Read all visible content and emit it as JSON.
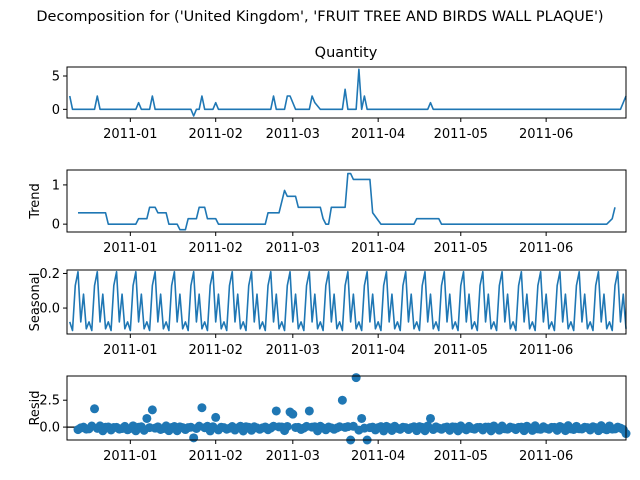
{
  "figure": {
    "suptitle": "Decomposition for ('United Kingdom', 'FRUIT TREE AND BIRDS WALL PLAQUE')"
  },
  "colors": {
    "series": "#1f77b4",
    "axis": "#000000",
    "background": "#ffffff"
  },
  "chart_data": [
    {
      "type": "line",
      "title": "Quantity",
      "ylabel": "",
      "x_ticks": [
        "2011-01",
        "2011-02",
        "2011-03",
        "2011-04",
        "2011-05",
        "2011-06"
      ],
      "y_ticks": [
        "0",
        "5"
      ],
      "ylim": [
        -1.3,
        6.35
      ],
      "points": [
        [
          "2010-12-10",
          2
        ],
        [
          "2010-12-11",
          0
        ],
        [
          "2010-12-19",
          0
        ],
        [
          "2010-12-20",
          2
        ],
        [
          "2010-12-21",
          0
        ],
        [
          "2011-01-03",
          0
        ],
        [
          "2011-01-04",
          1
        ],
        [
          "2011-01-05",
          0
        ],
        [
          "2011-01-08",
          0
        ],
        [
          "2011-01-09",
          2
        ],
        [
          "2011-01-10",
          0
        ],
        [
          "2011-01-23",
          0
        ],
        [
          "2011-01-24",
          -1
        ],
        [
          "2011-01-25",
          0
        ],
        [
          "2011-01-26",
          0
        ],
        [
          "2011-01-27",
          2
        ],
        [
          "2011-01-28",
          0
        ],
        [
          "2011-01-31",
          0
        ],
        [
          "2011-02-01",
          1
        ],
        [
          "2011-02-02",
          0
        ],
        [
          "2011-02-21",
          0
        ],
        [
          "2011-02-22",
          2
        ],
        [
          "2011-02-23",
          0
        ],
        [
          "2011-02-26",
          0
        ],
        [
          "2011-02-27",
          2
        ],
        [
          "2011-02-28",
          2
        ],
        [
          "2011-03-02",
          0
        ],
        [
          "2011-03-07",
          0
        ],
        [
          "2011-03-08",
          2
        ],
        [
          "2011-03-09",
          1
        ],
        [
          "2011-03-11",
          0
        ],
        [
          "2011-03-19",
          0
        ],
        [
          "2011-03-20",
          3
        ],
        [
          "2011-03-21",
          0
        ],
        [
          "2011-03-24",
          0
        ],
        [
          "2011-03-25",
          6
        ],
        [
          "2011-03-26",
          0
        ],
        [
          "2011-03-27",
          2
        ],
        [
          "2011-03-28",
          0
        ],
        [
          "2011-04-19",
          0
        ],
        [
          "2011-04-20",
          1
        ],
        [
          "2011-04-21",
          0
        ],
        [
          "2011-06-28",
          0
        ],
        [
          "2011-06-30",
          2
        ]
      ]
    },
    {
      "type": "line",
      "title": "",
      "ylabel": "Trend",
      "x_ticks": [
        "2011-01",
        "2011-02",
        "2011-03",
        "2011-04",
        "2011-05",
        "2011-06"
      ],
      "y_ticks": [
        "0",
        "1"
      ],
      "ylim": [
        -0.2,
        1.38
      ],
      "points": [
        [
          "2010-12-13",
          0.29
        ],
        [
          "2010-12-23",
          0.29
        ],
        [
          "2010-12-24",
          0.0
        ],
        [
          "2011-01-03",
          0.0
        ],
        [
          "2011-01-04",
          0.14
        ],
        [
          "2011-01-07",
          0.14
        ],
        [
          "2011-01-08",
          0.43
        ],
        [
          "2011-01-10",
          0.43
        ],
        [
          "2011-01-11",
          0.29
        ],
        [
          "2011-01-14",
          0.29
        ],
        [
          "2011-01-15",
          0.0
        ],
        [
          "2011-01-18",
          0.0
        ],
        [
          "2011-01-19",
          -0.14
        ],
        [
          "2011-01-21",
          -0.14
        ],
        [
          "2011-01-22",
          0.14
        ],
        [
          "2011-01-25",
          0.14
        ],
        [
          "2011-01-26",
          0.43
        ],
        [
          "2011-01-28",
          0.43
        ],
        [
          "2011-01-29",
          0.14
        ],
        [
          "2011-02-01",
          0.14
        ],
        [
          "2011-02-02",
          0.0
        ],
        [
          "2011-02-19",
          0.0
        ],
        [
          "2011-02-20",
          0.29
        ],
        [
          "2011-02-24",
          0.29
        ],
        [
          "2011-02-26",
          0.86
        ],
        [
          "2011-02-27",
          0.71
        ],
        [
          "2011-03-02",
          0.71
        ],
        [
          "2011-03-03",
          0.43
        ],
        [
          "2011-03-11",
          0.43
        ],
        [
          "2011-03-12",
          0.14
        ],
        [
          "2011-03-13",
          0.0
        ],
        [
          "2011-03-14",
          0.0
        ],
        [
          "2011-03-15",
          0.43
        ],
        [
          "2011-03-20",
          0.43
        ],
        [
          "2011-03-21",
          1.29
        ],
        [
          "2011-03-22",
          1.29
        ],
        [
          "2011-03-23",
          1.14
        ],
        [
          "2011-03-29",
          1.14
        ],
        [
          "2011-03-30",
          0.29
        ],
        [
          "2011-04-02",
          0.0
        ],
        [
          "2011-04-14",
          0.0
        ],
        [
          "2011-04-15",
          0.14
        ],
        [
          "2011-04-23",
          0.14
        ],
        [
          "2011-04-24",
          0.0
        ],
        [
          "2011-06-23",
          0.0
        ],
        [
          "2011-06-25",
          0.14
        ],
        [
          "2011-06-26",
          0.43
        ]
      ]
    },
    {
      "type": "line",
      "title": "",
      "ylabel": "Seasonal",
      "x_ticks": [
        "2011-01",
        "2011-02",
        "2011-03",
        "2011-04",
        "2011-05",
        "2011-06"
      ],
      "y_ticks": [
        "0.0",
        "0.2"
      ],
      "ylim": [
        -0.15,
        0.22
      ],
      "period_days": 7,
      "pattern": [
        -0.08,
        -0.13,
        0.13,
        0.21,
        -0.08,
        0.08,
        -0.12
      ],
      "range": [
        "2010-12-10",
        "2011-06-30"
      ]
    },
    {
      "type": "scatter",
      "title": "",
      "ylabel": "Resid",
      "x_ticks": [
        "2011-01",
        "2011-02",
        "2011-03",
        "2011-04",
        "2011-05",
        "2011-06"
      ],
      "y_ticks": [
        "0.0",
        "2.5"
      ],
      "ylim": [
        -1.2,
        4.75
      ],
      "baseline": 0,
      "outliers": [
        [
          "2010-12-19",
          1.7
        ],
        [
          "2011-01-07",
          0.8
        ],
        [
          "2011-01-09",
          1.6
        ],
        [
          "2011-01-24",
          -1.0
        ],
        [
          "2011-01-27",
          1.8
        ],
        [
          "2011-02-01",
          0.9
        ],
        [
          "2011-02-23",
          1.5
        ],
        [
          "2011-02-28",
          1.4
        ],
        [
          "2011-03-01",
          1.2
        ],
        [
          "2011-03-07",
          1.5
        ],
        [
          "2011-03-19",
          2.5
        ],
        [
          "2011-03-22",
          -1.2
        ],
        [
          "2011-03-24",
          4.6
        ],
        [
          "2011-03-26",
          0.8
        ],
        [
          "2011-03-28",
          -1.2
        ],
        [
          "2011-04-20",
          0.8
        ],
        [
          "2011-06-30",
          -0.6
        ]
      ]
    }
  ]
}
